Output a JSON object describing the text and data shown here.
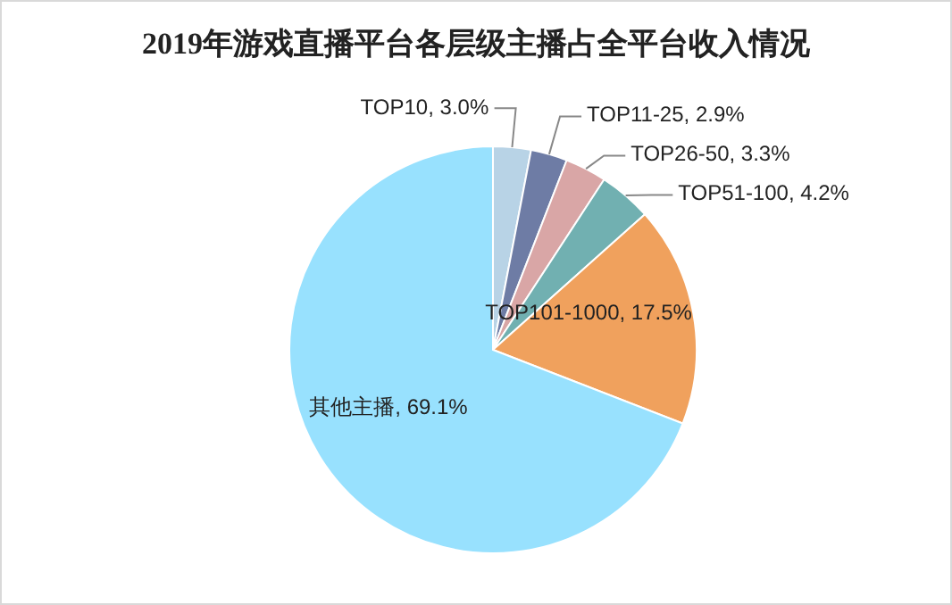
{
  "chart_data": {
    "type": "pie",
    "title": "2019年游戏直播平台各层级主播占全平台收入情况",
    "categories": [
      "TOP10",
      "TOP11-25",
      "TOP26-50",
      "TOP51-100",
      "TOP101-1000",
      "其他主播"
    ],
    "values": [
      3.0,
      2.9,
      3.3,
      4.2,
      17.5,
      69.1
    ],
    "value_labels": [
      "3.0%",
      "2.9%",
      "3.3%",
      "4.2%",
      "17.5%",
      "69.1%"
    ],
    "colors": [
      "#b8d3e6",
      "#6e7ca5",
      "#d9a6a6",
      "#71b0b1",
      "#f0a15d",
      "#98e1fe"
    ]
  }
}
